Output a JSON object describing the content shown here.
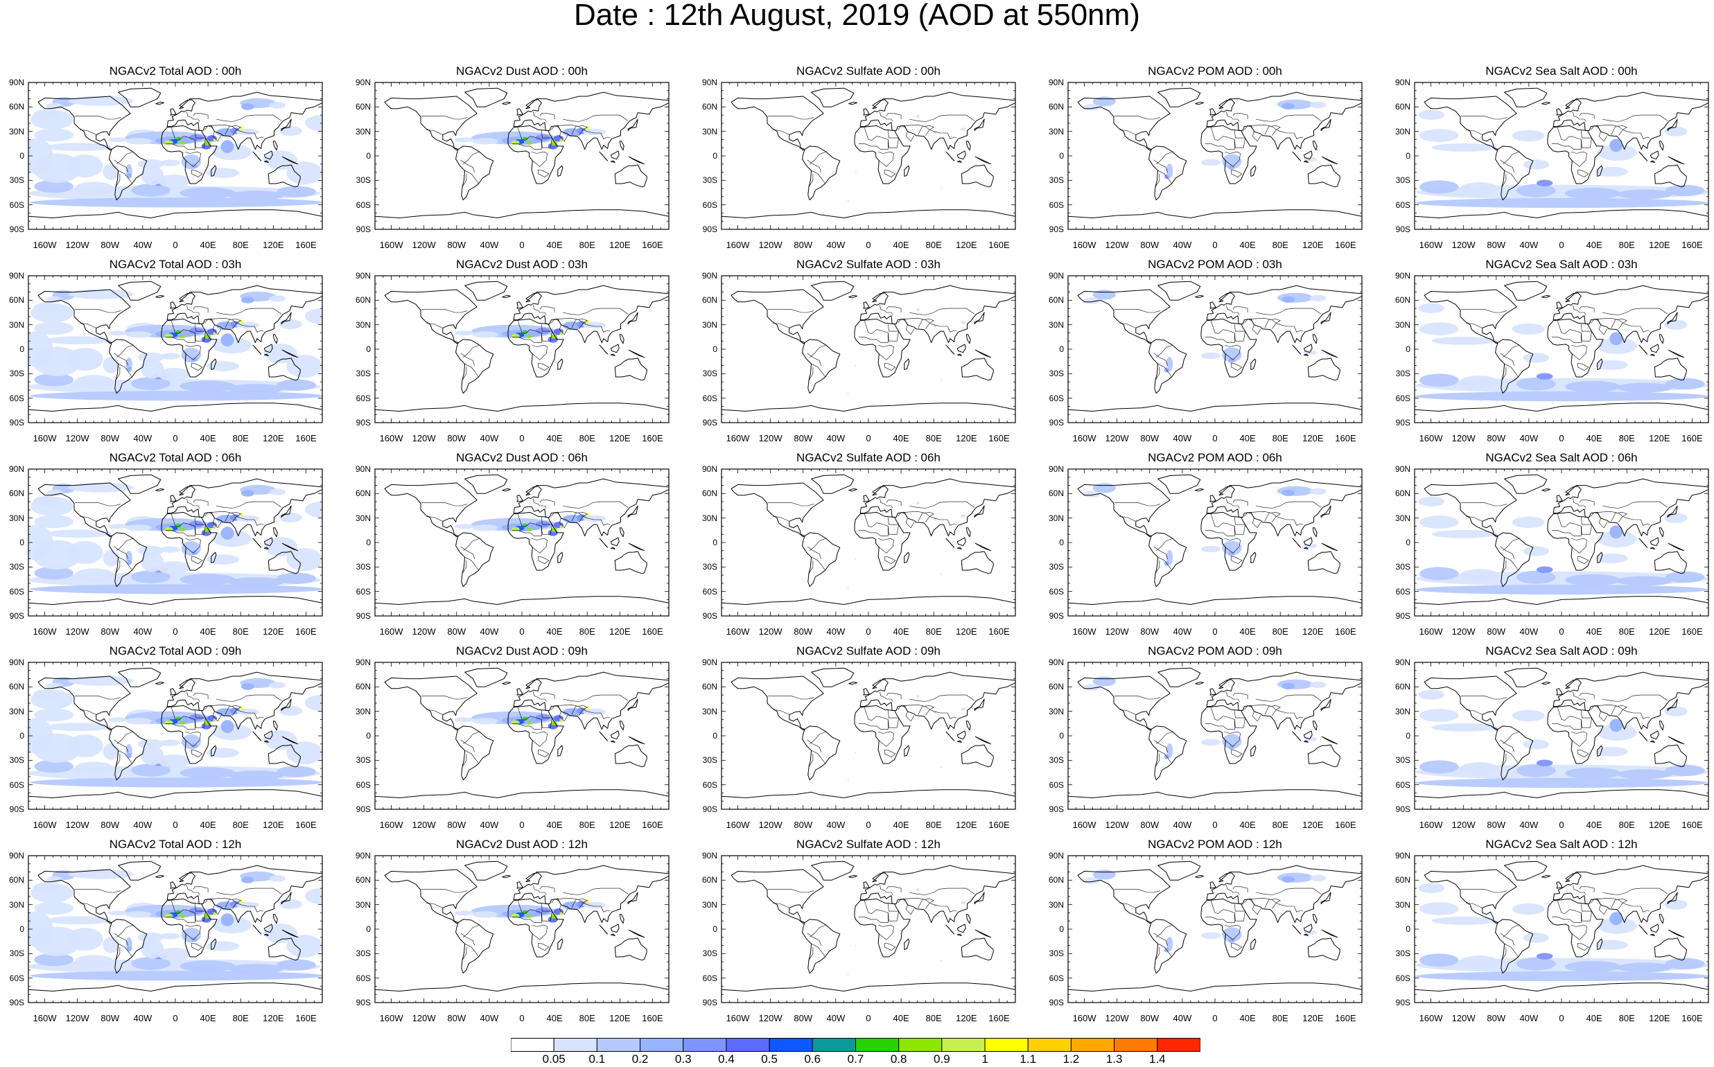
{
  "title": "Date : 12th August, 2019 (AOD at 550nm)",
  "lat_ticks": [
    "90N",
    "60N",
    "30N",
    "0",
    "30S",
    "60S",
    "90S"
  ],
  "lon_ticks": [
    "160W",
    "120W",
    "80W",
    "40W",
    "0",
    "40E",
    "80E",
    "120E",
    "160E"
  ],
  "rows": [
    {
      "hour": "00h",
      "titles": [
        "NGACv2 Total AOD : 00h",
        "NGACv2 Dust AOD : 00h",
        "NGACv2 Sulfate AOD : 00h",
        "NGACv2 POM AOD : 00h",
        "NGACv2 Sea Salt AOD : 00h"
      ]
    },
    {
      "hour": "03h",
      "titles": [
        "NGACv2 Total AOD : 03h",
        "NGACv2 Dust AOD : 03h",
        "NGACv2 Sulfate AOD : 03h",
        "NGACv2 POM AOD : 03h",
        "NGACv2 Sea Salt AOD : 03h"
      ]
    },
    {
      "hour": "06h",
      "titles": [
        "NGACv2 Total AOD : 06h",
        "NGACv2 Dust AOD : 06h",
        "NGACv2 Sulfate AOD : 06h",
        "NGACv2 POM AOD : 06h",
        "NGACv2 Sea Salt AOD : 06h"
      ]
    },
    {
      "hour": "09h",
      "titles": [
        "NGACv2 Total AOD : 09h",
        "NGACv2 Dust AOD : 09h",
        "NGACv2 Sulfate AOD : 09h",
        "NGACv2 POM AOD : 09h",
        "NGACv2 Sea Salt  AOD : 09h"
      ]
    },
    {
      "hour": "12h",
      "titles": [
        "NGACv2 Total AOD  : 12h",
        "NGACv2 Dust AOD : 12h",
        "NGACv2 Sulfate AOD : 12h",
        "NGACv2 POM  AOD : 12h",
        "NGACv2 Sea Salt  AOD : 12h"
      ]
    }
  ],
  "columns": [
    "total",
    "dust",
    "sulfate",
    "pom",
    "seasalt"
  ],
  "colorbar": {
    "labels": [
      "0.05",
      "0.1",
      "0.2",
      "0.3",
      "0.4",
      "0.5",
      "0.6",
      "0.7",
      "0.8",
      "0.9",
      "1",
      "1.1",
      "1.2",
      "1.3",
      "1.4"
    ],
    "colors": [
      "#ffffff",
      "#d8e4ff",
      "#b5c9ff",
      "#98b3ff",
      "#7f94ff",
      "#5e6bff",
      "#0e58ff",
      "#0a9a9a",
      "#27d200",
      "#8ee600",
      "#c8f050",
      "#ffff00",
      "#ffd000",
      "#ffa800",
      "#ff7c00",
      "#ff2800"
    ]
  }
}
